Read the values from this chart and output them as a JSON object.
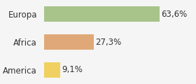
{
  "categories": [
    "America",
    "Africa",
    "Europa"
  ],
  "values": [
    9.1,
    27.3,
    63.6
  ],
  "labels": [
    "9,1%",
    "27,3%",
    "63,6%"
  ],
  "bar_colors": [
    "#f0d060",
    "#e0a878",
    "#a8c48a"
  ],
  "background_color": "#f5f5f5",
  "xlim": [
    0,
    82
  ],
  "bar_height": 0.55,
  "label_fontsize": 8.5,
  "tick_fontsize": 8.5
}
